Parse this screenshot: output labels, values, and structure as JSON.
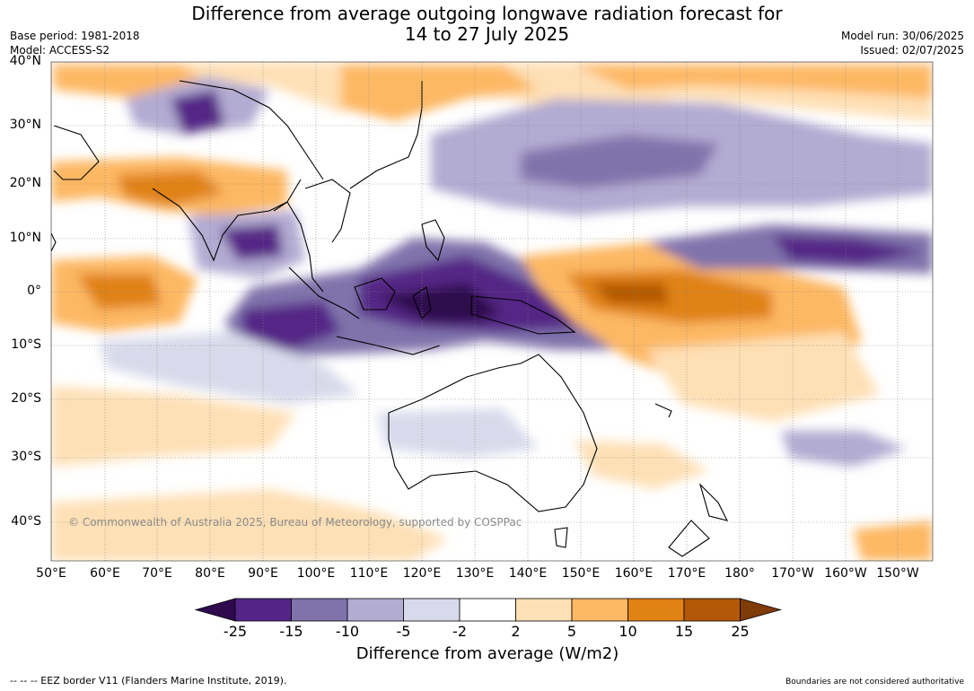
{
  "header": {
    "title_line1": "Difference from average outgoing longwave radiation forecast for",
    "title_line2": "14 to 27 July 2025",
    "base_period": "Base period: 1981-2018",
    "model": "Model: ACCESS-S2",
    "model_run": "Model run: 30/06/2025",
    "issued": "Issued: 02/07/2025"
  },
  "map": {
    "lat_labels": [
      "40°N",
      "30°N",
      "20°N",
      "10°N",
      "0°",
      "10°S",
      "20°S",
      "30°S",
      "40°S"
    ],
    "lon_labels": [
      "50°E",
      "60°E",
      "70°E",
      "80°E",
      "90°E",
      "100°E",
      "110°E",
      "120°E",
      "130°E",
      "140°E",
      "150°E",
      "160°E",
      "170°E",
      "180°",
      "170°W",
      "160°W",
      "150°W"
    ],
    "copyright": "© Commonwealth of Australia 2025, Bureau of Meteorology, supported by COSPPac"
  },
  "legend": {
    "title": "Difference from average (W/m2)",
    "ticks": [
      "-25",
      "-15",
      "-10",
      "-5",
      "-2",
      "2",
      "5",
      "10",
      "15",
      "25"
    ],
    "colors": [
      "#2f0b4e",
      "#542586",
      "#8073ac",
      "#b2abd2",
      "#d8daeb",
      "#ffffff",
      "#fee0b6",
      "#fdb863",
      "#e08214",
      "#b35806",
      "#7f3b08"
    ]
  },
  "footer": {
    "eez_note": "-- -- -- EEZ border V11 (Flanders Marine Institute, 2019).",
    "boundaries_note": "Boundaries are not considered authoritative"
  }
}
